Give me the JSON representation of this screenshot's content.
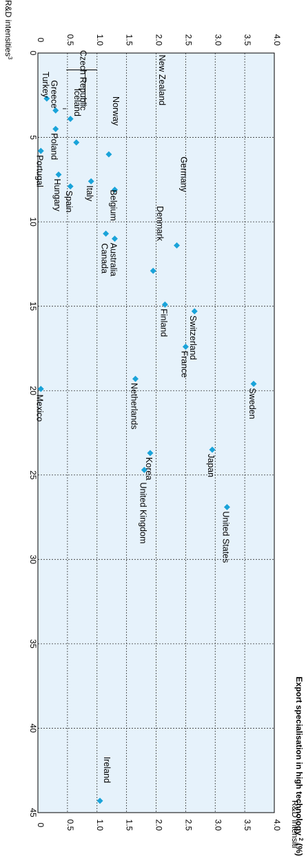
{
  "chart_data": {
    "type": "scatter",
    "title": "",
    "xlabel": "Export specialisation in high technology",
    "xlabel_superscript": "2",
    "xlabel_unit": " (%)",
    "ylabel": "R&D intensities",
    "ylabel_superscript": "3",
    "ylabel_right": "R&D intensiti",
    "xlim": [
      0,
      45
    ],
    "ylim": [
      0,
      4.0
    ],
    "x_ticks": [
      "0",
      "5",
      "10",
      "15",
      "20",
      "25",
      "30",
      "35",
      "40",
      "45"
    ],
    "y_ticks": [
      "0",
      "0.5",
      "1.0",
      "1.5",
      "2.0",
      "2.5",
      "3.0",
      "3.5",
      "4.0"
    ],
    "grid": true,
    "marker_color": "#1aa3d9",
    "plot_background": "#e6f2fb",
    "points": [
      {
        "label": "Sweden",
        "x": 19.6,
        "y": 3.65
      },
      {
        "label": "Japan",
        "x": 23.5,
        "y": 2.95
      },
      {
        "label": "United States",
        "x": 26.9,
        "y": 3.2
      },
      {
        "label": "Switzerland",
        "x": 15.3,
        "y": 2.65
      },
      {
        "label": "France",
        "x": 17.4,
        "y": 2.5
      },
      {
        "label": "Germany",
        "x": 11.4,
        "y": 2.35
      },
      {
        "label": "Finland",
        "x": 14.9,
        "y": 2.15
      },
      {
        "label": "Denmark",
        "x": 12.9,
        "y": 1.95
      },
      {
        "label": "Netherlands",
        "x": 19.3,
        "y": 1.65
      },
      {
        "label": "Korea",
        "x": 23.7,
        "y": 1.9
      },
      {
        "label": "United Kingdom",
        "x": 24.7,
        "y": 1.8
      },
      {
        "label": "Ireland",
        "x": 44.3,
        "y": 1.05
      },
      {
        "label": "Belgium",
        "x": 8.1,
        "y": 1.3
      },
      {
        "label": "Norway",
        "x": 6.0,
        "y": 1.2
      },
      {
        "label": "Australia",
        "x": 11.0,
        "y": 1.3
      },
      {
        "label": "Canada",
        "x": 10.7,
        "y": 1.15
      },
      {
        "label": "Italy",
        "x": 7.6,
        "y": 0.9
      },
      {
        "label": "Czech Republic",
        "x": 5.3,
        "y": 0.65
      },
      {
        "label": "Iceland",
        "x": 3.9,
        "y": 0.55
      },
      {
        "label": "Spain",
        "x": 7.9,
        "y": 0.55
      },
      {
        "label": "Hungary",
        "x": 7.2,
        "y": 0.35
      },
      {
        "label": "Poland",
        "x": 4.5,
        "y": 0.3
      },
      {
        "label": "Greece",
        "x": 3.4,
        "y": 0.3
      },
      {
        "label": "Turkey",
        "x": 2.7,
        "y": 0.15
      },
      {
        "label": "Portugal",
        "x": 5.8,
        "y": 0.05
      },
      {
        "label": "Mexico",
        "x": 19.9,
        "y": 0.05
      },
      {
        "label": "New Zealand",
        "x": null,
        "y": null
      }
    ]
  }
}
